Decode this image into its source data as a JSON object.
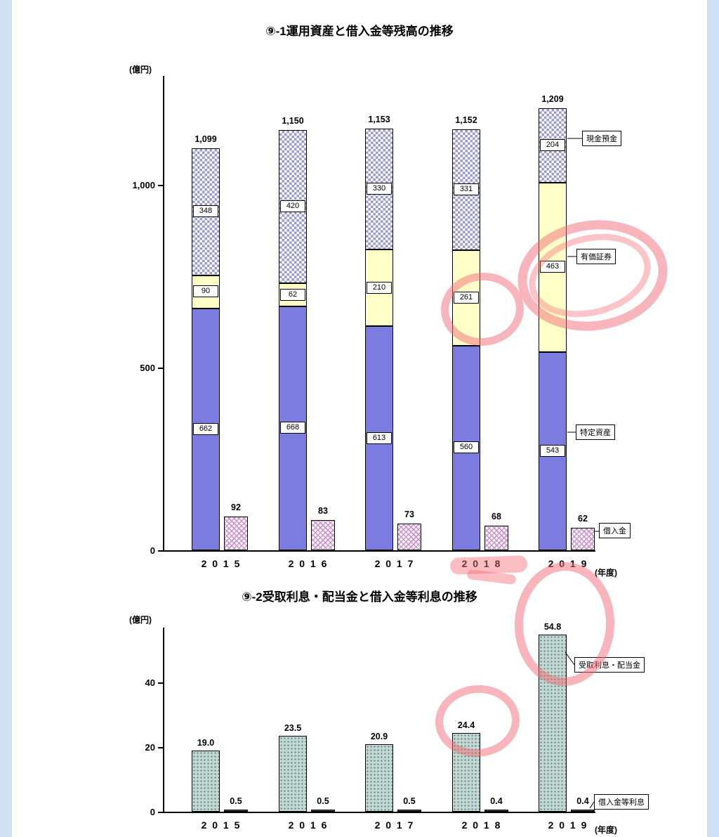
{
  "page": {
    "margin_color": "#cfe1f3"
  },
  "chart1": {
    "title": "⑨-1運用資産と借入金等残高の推移",
    "unit": "(億円)",
    "x_suffix": "(年度)",
    "legend": {
      "cash": "現金預金",
      "securities": "有価証券",
      "assets": "特定資産",
      "loan": "借入金"
    }
  },
  "chart2": {
    "title": "⑨-2受取利息・配当金と借入金等利息の推移",
    "unit": "(億円)",
    "x_suffix": "(年度)",
    "legend": {
      "dividends": "受取利息・配当金",
      "loan_interest": "借入金等利息"
    }
  },
  "colors": {
    "specified_assets": "#7b7be0",
    "securities": "#ffffc8",
    "cash_pattern": "#9a9ad2",
    "loan_pattern": "#cf8fcf",
    "dividends_bar": "#c3d7d3",
    "annotation_red": "#f26c78",
    "page_margin": "#cfe1f3"
  },
  "chart_data": [
    {
      "type": "bar",
      "stacked": true,
      "title": "⑨-1運用資産と借入金等残高の推移",
      "ylabel": "(億円)",
      "categories": [
        "2015",
        "2016",
        "2017",
        "2018",
        "2019"
      ],
      "series": [
        {
          "name": "特定資産",
          "values": [
            662,
            668,
            613,
            560,
            543
          ]
        },
        {
          "name": "有価証券",
          "values": [
            90,
            62,
            210,
            261,
            463
          ]
        },
        {
          "name": "現金預金",
          "values": [
            348,
            420,
            330,
            331,
            204
          ]
        }
      ],
      "totals": [
        "1,099",
        "1,150",
        "1,153",
        "1,152",
        "1,209"
      ],
      "loan_series": {
        "name": "借入金",
        "values": [
          92,
          83,
          73,
          68,
          62
        ]
      },
      "yticks": [
        0,
        500,
        1000
      ],
      "ylim": [
        0,
        1300
      ],
      "x_suffix": "(年度)",
      "grid": false,
      "legend_position": "right-callouts"
    },
    {
      "type": "bar",
      "stacked": false,
      "title": "⑨-2受取利息・配当金と借入金等利息の推移",
      "ylabel": "(億円)",
      "categories": [
        "2015",
        "2016",
        "2017",
        "2018",
        "2019"
      ],
      "series": [
        {
          "name": "受取利息・配当金",
          "values": [
            19.0,
            23.5,
            20.9,
            24.4,
            54.8
          ]
        },
        {
          "name": "借入金等利息",
          "values": [
            0.5,
            0.5,
            0.5,
            0.4,
            0.4
          ]
        }
      ],
      "yticks": [
        0,
        20,
        40
      ],
      "ylim": [
        0,
        57
      ],
      "x_suffix": "(年度)",
      "grid": false,
      "legend_position": "right-callouts"
    }
  ]
}
